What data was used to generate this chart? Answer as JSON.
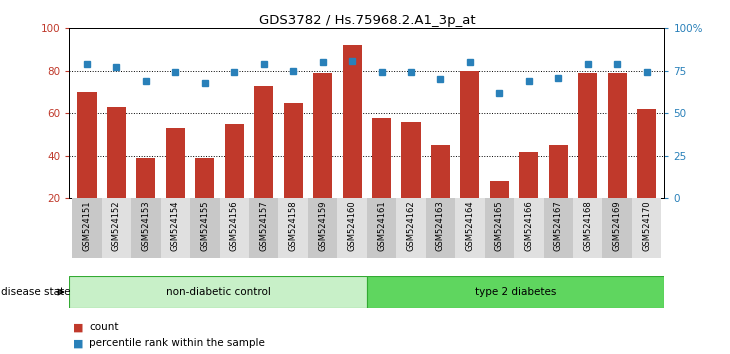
{
  "title": "GDS3782 / Hs.75968.2.A1_3p_at",
  "samples": [
    "GSM524151",
    "GSM524152",
    "GSM524153",
    "GSM524154",
    "GSM524155",
    "GSM524156",
    "GSM524157",
    "GSM524158",
    "GSM524159",
    "GSM524160",
    "GSM524161",
    "GSM524162",
    "GSM524163",
    "GSM524164",
    "GSM524165",
    "GSM524166",
    "GSM524167",
    "GSM524168",
    "GSM524169",
    "GSM524170"
  ],
  "counts": [
    70,
    63,
    39,
    53,
    39,
    55,
    73,
    65,
    79,
    92,
    58,
    56,
    45,
    80,
    28,
    42,
    45,
    79,
    79,
    62
  ],
  "percentiles": [
    79,
    77,
    69,
    74,
    68,
    74,
    79,
    75,
    80,
    81,
    74,
    74,
    70,
    80,
    62,
    69,
    71,
    79,
    79,
    74
  ],
  "non_diabetic_count": 10,
  "type2_count": 10,
  "bar_color": "#c0392b",
  "dot_color": "#2980b9",
  "non_diabetic_color": "#c8f0c8",
  "type2_color": "#5fd65f",
  "ylim_left": [
    20,
    100
  ],
  "ylim_right": [
    0,
    100
  ],
  "yticks_left": [
    20,
    40,
    60,
    80,
    100
  ],
  "yticks_right": [
    0,
    25,
    50,
    75,
    100
  ],
  "ytick_labels_right": [
    "0",
    "25",
    "50",
    "75",
    "100%"
  ],
  "legend_count_label": "count",
  "legend_pct_label": "percentile rank within the sample",
  "group1_label": "non-diabetic control",
  "group2_label": "type 2 diabetes",
  "disease_state_label": "disease state"
}
